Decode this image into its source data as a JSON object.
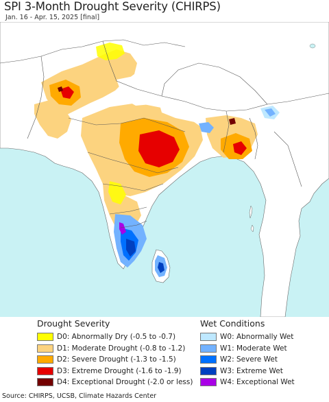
{
  "title": "SPI 3-Month Drought Severity (CHIRPS)",
  "subtitle": "Jan. 16 - Apr. 15, 2025 [final]",
  "map": {
    "colors": {
      "land": "#ffffff",
      "ocean": "#c9f2f4",
      "border": "#555555"
    }
  },
  "legend": {
    "drought_title": "Drought Severity",
    "wet_title": "Wet Conditions",
    "drought_items": [
      {
        "label": "D0: Abnormally Dry (-0.5 to -0.7)",
        "color": "#ffff00"
      },
      {
        "label": "D1: Moderate Drought (-0.8 to -1.2)",
        "color": "#fcd37f"
      },
      {
        "label": "D2: Severe Drought (-1.3 to -1.5)",
        "color": "#ffaa00"
      },
      {
        "label": "D3: Extreme Drought (-1.6 to -1.9)",
        "color": "#e60000"
      },
      {
        "label": "D4: Exceptional Drought (-2.0 or less)",
        "color": "#730000"
      }
    ],
    "wet_items": [
      {
        "label": "W0: Abnormally Wet",
        "color": "#bee8ff"
      },
      {
        "label": "W1: Moderate Wet",
        "color": "#73b2ff"
      },
      {
        "label": "W2: Severe Wet",
        "color": "#0070ff"
      },
      {
        "label": "W3: Extreme Wet",
        "color": "#0040c0"
      },
      {
        "label": "W4: Exceptional Wet",
        "color": "#a900e6"
      }
    ]
  },
  "source": "Source: CHIRPS, UCSB, Climate Hazards Center"
}
